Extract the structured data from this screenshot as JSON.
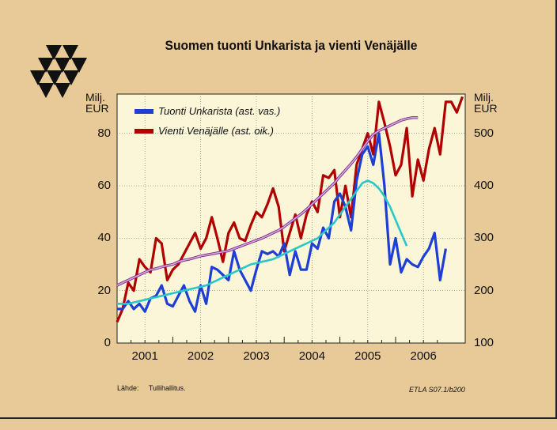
{
  "colors": {
    "background": "#e8c998",
    "plot_bg": "#fbf6d8",
    "import": "#1e3fd6",
    "export": "#b00000",
    "import_trend": "#28c8c8",
    "export_trend": "#d9a6e0"
  },
  "logo": "etla-triangle-logo",
  "chart_data": {
    "type": "line",
    "title": "Suomen tuonti Unkarista ja vienti Venäjälle",
    "y_left": {
      "unit": "Milj.\nEUR",
      "ticks": [
        0,
        20,
        40,
        60,
        80
      ],
      "range": [
        0,
        95
      ]
    },
    "y_right": {
      "unit": "Milj.\nEUR",
      "ticks": [
        100,
        200,
        300,
        400,
        500
      ],
      "range": [
        100,
        575
      ]
    },
    "x": {
      "ticks": [
        "2001",
        "2002",
        "2003",
        "2004",
        "2005",
        "2006"
      ],
      "range": [
        2000.5,
        2006.75
      ]
    },
    "legend": [
      "Tuonti Unkarista (ast. vas.)",
      "Vienti Venäjälle (ast. oik.)"
    ],
    "series": [
      {
        "name": "Tuonti Unkarista (ast. vas.)",
        "axis": "left",
        "x": [
          2000.5,
          2000.6,
          2000.7,
          2000.8,
          2000.9,
          2001.0,
          2001.1,
          2001.2,
          2001.3,
          2001.4,
          2001.5,
          2001.6,
          2001.7,
          2001.8,
          2001.9,
          2002.0,
          2002.1,
          2002.2,
          2002.3,
          2002.4,
          2002.5,
          2002.6,
          2002.7,
          2002.8,
          2002.9,
          2003.0,
          2003.1,
          2003.2,
          2003.3,
          2003.4,
          2003.5,
          2003.6,
          2003.7,
          2003.8,
          2003.9,
          2004.0,
          2004.1,
          2004.2,
          2004.3,
          2004.4,
          2004.5,
          2004.6,
          2004.7,
          2004.8,
          2004.9,
          2005.0,
          2005.1,
          2005.2,
          2005.3,
          2005.4,
          2005.5,
          2005.6,
          2005.7,
          2005.8,
          2005.9,
          2006.0,
          2006.1,
          2006.2,
          2006.3,
          2006.4,
          2006.5,
          2006.6,
          2006.7
        ],
        "values": [
          13,
          13,
          16,
          13,
          15,
          12,
          17,
          18,
          22,
          15,
          14,
          18,
          22,
          16,
          12,
          22,
          15,
          29,
          28,
          26,
          24,
          35,
          28,
          24,
          20,
          28,
          35,
          34,
          35,
          33,
          38,
          26,
          35,
          28,
          28,
          38,
          36,
          44,
          40,
          54,
          57,
          52,
          43,
          62,
          72,
          75,
          68,
          80,
          60,
          30,
          40,
          27,
          32,
          30,
          29,
          33,
          36,
          42,
          24,
          36,
          null,
          null,
          null
        ],
        "trend": [
          15,
          15,
          15,
          15.5,
          16,
          16.5,
          17,
          17.5,
          18,
          18.5,
          19,
          19.5,
          20,
          20.5,
          21,
          21.5,
          22,
          23,
          24,
          25,
          26,
          27,
          28,
          29,
          30,
          30.5,
          31,
          31.5,
          32,
          33,
          34,
          35,
          36,
          37,
          38,
          39,
          40,
          42,
          44,
          46,
          49,
          52,
          55,
          58,
          61,
          62,
          61,
          59,
          56,
          52,
          47,
          42,
          37,
          null,
          null,
          null,
          null,
          null,
          null,
          null,
          null,
          null,
          null
        ]
      },
      {
        "name": "Vienti Venäjälle (ast. oik.)",
        "axis": "right",
        "x": [
          2000.5,
          2000.6,
          2000.7,
          2000.8,
          2000.9,
          2001.0,
          2001.1,
          2001.2,
          2001.3,
          2001.4,
          2001.5,
          2001.6,
          2001.7,
          2001.8,
          2001.9,
          2002.0,
          2002.1,
          2002.2,
          2002.3,
          2002.4,
          2002.5,
          2002.6,
          2002.7,
          2002.8,
          2002.9,
          2003.0,
          2003.1,
          2003.2,
          2003.3,
          2003.4,
          2003.5,
          2003.6,
          2003.7,
          2003.8,
          2003.9,
          2004.0,
          2004.1,
          2004.2,
          2004.3,
          2004.4,
          2004.5,
          2004.6,
          2004.7,
          2004.8,
          2004.9,
          2005.0,
          2005.1,
          2005.2,
          2005.3,
          2005.4,
          2005.5,
          2005.6,
          2005.7,
          2005.8,
          2005.9,
          2006.0,
          2006.1,
          2006.2,
          2006.3,
          2006.4,
          2006.5,
          2006.6,
          2006.7
        ],
        "values": [
          140,
          165,
          215,
          200,
          260,
          245,
          235,
          300,
          290,
          220,
          240,
          250,
          270,
          290,
          310,
          280,
          300,
          340,
          300,
          255,
          310,
          330,
          300,
          295,
          325,
          350,
          340,
          365,
          395,
          360,
          275,
          310,
          345,
          300,
          345,
          370,
          350,
          420,
          415,
          430,
          340,
          400,
          340,
          440,
          470,
          500,
          460,
          560,
          520,
          475,
          420,
          440,
          510,
          380,
          450,
          410,
          470,
          510,
          460,
          560,
          560,
          540,
          570
        ],
        "trend": [
          210,
          215,
          220,
          225,
          230,
          235,
          240,
          242,
          245,
          248,
          250,
          255,
          258,
          260,
          263,
          266,
          268,
          270,
          272,
          274,
          276,
          280,
          284,
          288,
          292,
          296,
          300,
          305,
          310,
          315,
          322,
          330,
          338,
          346,
          355,
          365,
          375,
          385,
          395,
          405,
          418,
          430,
          442,
          455,
          470,
          485,
          498,
          505,
          510,
          515,
          520,
          525,
          528,
          530,
          530,
          null,
          null,
          null,
          null,
          null,
          null,
          null,
          null
        ]
      }
    ]
  },
  "footer": {
    "source_label": "Lähde:",
    "source_value": "Tullihallitus.",
    "code": "ETLA S07.1/b200"
  }
}
